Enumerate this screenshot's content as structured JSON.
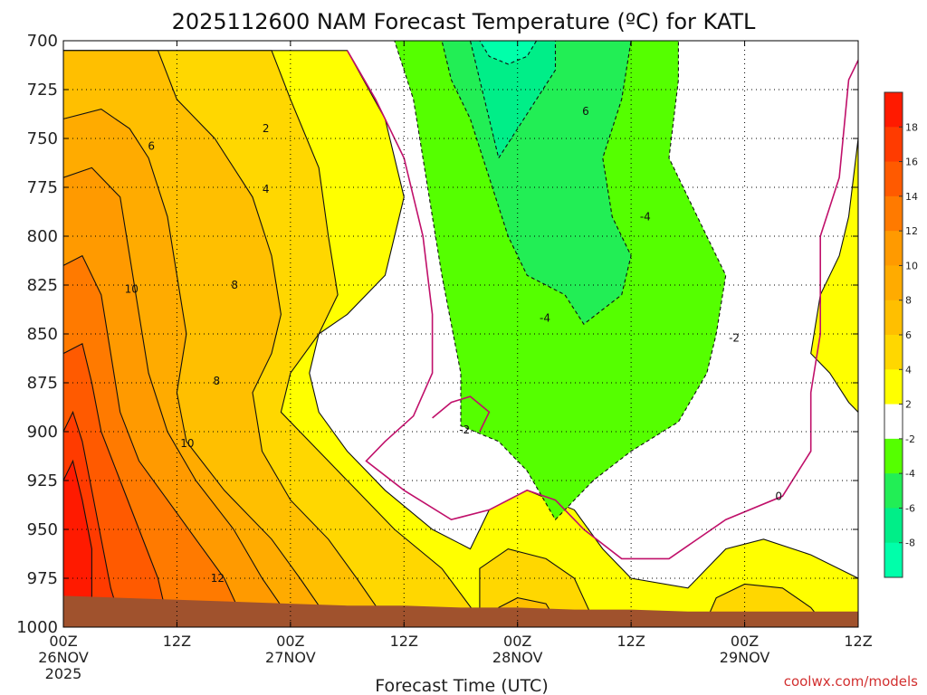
{
  "chart_data": {
    "type": "heatmap",
    "title": "2025112600 NAM Forecast Temperature (ºC) for KATL",
    "xlabel": "Forecast Time (UTC)",
    "ylabel": "",
    "y_ticks": [
      "700",
      "725",
      "750",
      "775",
      "800",
      "825",
      "850",
      "875",
      "900",
      "925",
      "950",
      "975",
      "1000"
    ],
    "y_range_hPa": [
      700,
      1000
    ],
    "x_ticks": [
      {
        "time": "00Z",
        "date": "26NOV",
        "year": "2025"
      },
      {
        "time": "12Z",
        "date": "",
        "year": ""
      },
      {
        "time": "00Z",
        "date": "27NOV",
        "year": ""
      },
      {
        "time": "12Z",
        "date": "",
        "year": ""
      },
      {
        "time": "00Z",
        "date": "28NOV",
        "year": ""
      },
      {
        "time": "12Z",
        "date": "",
        "year": ""
      },
      {
        "time": "00Z",
        "date": "29NOV",
        "year": ""
      },
      {
        "time": "12Z",
        "date": "",
        "year": ""
      }
    ],
    "x_range_hours": [
      0,
      84
    ],
    "grid": true,
    "colorbar": {
      "labels": [
        "18",
        "16",
        "14",
        "12",
        "10",
        "8",
        "6",
        "4",
        "2",
        "-2",
        "-4",
        "-6",
        "-8"
      ],
      "bands": [
        {
          "from": 18,
          "to": 20,
          "color": "#ff1a00"
        },
        {
          "from": 16,
          "to": 18,
          "color": "#ff3b00"
        },
        {
          "from": 14,
          "to": 16,
          "color": "#ff5a00"
        },
        {
          "from": 12,
          "to": 14,
          "color": "#ff7a00"
        },
        {
          "from": 10,
          "to": 12,
          "color": "#ff9a00"
        },
        {
          "from": 8,
          "to": 10,
          "color": "#ffab00"
        },
        {
          "from": 6,
          "to": 8,
          "color": "#ffbf00"
        },
        {
          "from": 4,
          "to": 6,
          "color": "#ffd700"
        },
        {
          "from": 2,
          "to": 4,
          "color": "#ffff00"
        },
        {
          "from": -2,
          "to": 2,
          "color": "#ffffff"
        },
        {
          "from": -4,
          "to": -2,
          "color": "#55ff00"
        },
        {
          "from": -6,
          "to": -4,
          "color": "#22ee55"
        },
        {
          "from": -8,
          "to": -6,
          "color": "#00ee88"
        },
        {
          "from": -10,
          "to": -8,
          "color": "#00ffaa"
        }
      ]
    },
    "contour_labels": [
      {
        "text": "6",
        "hour": 9.3,
        "p": 754
      },
      {
        "text": "2",
        "hour": 21.4,
        "p": 745
      },
      {
        "text": "4",
        "hour": 21.4,
        "p": 776
      },
      {
        "text": "10",
        "hour": 7.2,
        "p": 827
      },
      {
        "text": "8",
        "hour": 18.1,
        "p": 825
      },
      {
        "text": "8",
        "hour": 16.2,
        "p": 874
      },
      {
        "text": "10",
        "hour": 13.1,
        "p": 906
      },
      {
        "text": "12",
        "hour": 16.3,
        "p": 975
      },
      {
        "text": "6",
        "hour": 55.2,
        "p": 736
      },
      {
        "text": "-4",
        "hour": 61.5,
        "p": 790
      },
      {
        "text": "-4",
        "hour": 50.9,
        "p": 842
      },
      {
        "text": "-2",
        "hour": 42.4,
        "p": 899
      },
      {
        "text": "-2",
        "hour": 70.9,
        "p": 852
      },
      {
        "text": "0",
        "hour": 75.6,
        "p": 933
      }
    ],
    "fields": [
      {
        "value_range": [
          2,
          4
        ],
        "color": "#ffff00",
        "outline": [
          [
            0,
            705
          ],
          [
            30,
            705
          ],
          [
            34,
            740
          ],
          [
            36,
            780
          ],
          [
            34,
            820
          ],
          [
            30,
            840
          ],
          [
            27,
            850
          ],
          [
            26,
            870
          ],
          [
            27,
            890
          ],
          [
            30,
            910
          ],
          [
            34,
            930
          ],
          [
            39,
            950
          ],
          [
            43,
            960
          ],
          [
            45,
            940
          ],
          [
            49,
            930
          ],
          [
            54,
            940
          ],
          [
            57,
            960
          ],
          [
            60,
            975
          ],
          [
            66,
            980
          ],
          [
            70,
            960
          ],
          [
            74,
            955
          ],
          [
            79,
            963
          ],
          [
            84,
            975
          ],
          [
            84,
            996
          ],
          [
            0,
            996
          ]
        ]
      },
      {
        "value_range": [
          2,
          4
        ],
        "color": "#ffff00",
        "outline": [
          [
            84,
            750
          ],
          [
            84,
            890
          ],
          [
            83,
            885
          ],
          [
            81,
            870
          ],
          [
            79,
            860
          ],
          [
            80,
            830
          ],
          [
            82,
            810
          ],
          [
            83,
            790
          ]
        ]
      },
      {
        "value_range": [
          4,
          6
        ],
        "color": "#ffd700",
        "outline": [
          [
            0,
            705
          ],
          [
            22,
            705
          ],
          [
            24,
            730
          ],
          [
            27,
            765
          ],
          [
            28,
            800
          ],
          [
            29,
            830
          ],
          [
            27,
            850
          ],
          [
            24,
            870
          ],
          [
            23,
            890
          ],
          [
            27,
            910
          ],
          [
            31,
            930
          ],
          [
            35,
            950
          ],
          [
            40,
            970
          ],
          [
            44,
            996
          ],
          [
            0,
            996
          ]
        ]
      },
      {
        "value_range": [
          4,
          6
        ],
        "color": "#ffd700",
        "outline": [
          [
            44,
            970
          ],
          [
            47,
            960
          ],
          [
            51,
            965
          ],
          [
            54,
            975
          ],
          [
            56,
            996
          ],
          [
            44,
            996
          ]
        ]
      },
      {
        "value_range": [
          4,
          6
        ],
        "color": "#ffd700",
        "outline": [
          [
            68,
            996
          ],
          [
            69,
            985
          ],
          [
            72,
            978
          ],
          [
            76,
            980
          ],
          [
            79,
            990
          ],
          [
            80,
            996
          ]
        ]
      },
      {
        "value_range": [
          6,
          8
        ],
        "color": "#ffbf00",
        "outline": [
          [
            0,
            705
          ],
          [
            10,
            705
          ],
          [
            12,
            730
          ],
          [
            16,
            750
          ],
          [
            20,
            780
          ],
          [
            22,
            810
          ],
          [
            23,
            840
          ],
          [
            22,
            860
          ],
          [
            20,
            880
          ],
          [
            21,
            910
          ],
          [
            24,
            935
          ],
          [
            28,
            955
          ],
          [
            31,
            975
          ],
          [
            34,
            996
          ],
          [
            0,
            996
          ]
        ]
      },
      {
        "value_range": [
          6,
          8
        ],
        "color": "#ffbf00",
        "outline": [
          [
            46,
            990
          ],
          [
            48,
            985
          ],
          [
            51,
            988
          ],
          [
            52,
            996
          ],
          [
            46,
            996
          ]
        ]
      },
      {
        "value_range": [
          8,
          10
        ],
        "color": "#ffab00",
        "outline": [
          [
            0,
            740
          ],
          [
            4,
            735
          ],
          [
            7,
            745
          ],
          [
            9,
            760
          ],
          [
            11,
            790
          ],
          [
            12,
            820
          ],
          [
            13,
            850
          ],
          [
            12,
            880
          ],
          [
            13,
            905
          ],
          [
            17,
            930
          ],
          [
            22,
            955
          ],
          [
            25,
            975
          ],
          [
            28,
            996
          ],
          [
            0,
            996
          ]
        ]
      },
      {
        "value_range": [
          10,
          12
        ],
        "color": "#ff9a00",
        "outline": [
          [
            0,
            770
          ],
          [
            3,
            765
          ],
          [
            6,
            780
          ],
          [
            7,
            810
          ],
          [
            8,
            840
          ],
          [
            9,
            870
          ],
          [
            11,
            900
          ],
          [
            14,
            925
          ],
          [
            18,
            950
          ],
          [
            21,
            975
          ],
          [
            24,
            996
          ],
          [
            0,
            996
          ]
        ]
      },
      {
        "value_range": [
          12,
          14
        ],
        "color": "#ff7a00",
        "outline": [
          [
            0,
            815
          ],
          [
            2,
            810
          ],
          [
            4,
            830
          ],
          [
            5,
            860
          ],
          [
            6,
            890
          ],
          [
            8,
            915
          ],
          [
            11,
            935
          ],
          [
            14,
            955
          ],
          [
            17,
            975
          ],
          [
            19,
            996
          ],
          [
            0,
            996
          ]
        ]
      },
      {
        "value_range": [
          14,
          16
        ],
        "color": "#ff5a00",
        "outline": [
          [
            0,
            860
          ],
          [
            2,
            855
          ],
          [
            3,
            875
          ],
          [
            4,
            900
          ],
          [
            6,
            925
          ],
          [
            8,
            950
          ],
          [
            10,
            975
          ],
          [
            11,
            996
          ],
          [
            0,
            996
          ]
        ]
      },
      {
        "value_range": [
          16,
          18
        ],
        "color": "#ff3b00",
        "outline": [
          [
            0,
            900
          ],
          [
            1,
            890
          ],
          [
            2,
            905
          ],
          [
            3,
            930
          ],
          [
            4,
            955
          ],
          [
            5,
            980
          ],
          [
            6,
            996
          ],
          [
            0,
            996
          ]
        ]
      },
      {
        "value_range": [
          18,
          20
        ],
        "color": "#ff1a00",
        "outline": [
          [
            0,
            925
          ],
          [
            1,
            915
          ],
          [
            2,
            935
          ],
          [
            3,
            960
          ],
          [
            3,
            985
          ],
          [
            0,
            985
          ]
        ]
      },
      {
        "value_range": [
          -4,
          -2
        ],
        "color": "#55ff00",
        "outline": [
          [
            35,
            700
          ],
          [
            65,
            700
          ],
          [
            65,
            720
          ],
          [
            64,
            760
          ],
          [
            67,
            790
          ],
          [
            70,
            820
          ],
          [
            69,
            850
          ],
          [
            68,
            870
          ],
          [
            65,
            895
          ],
          [
            60,
            910
          ],
          [
            56,
            925
          ],
          [
            52,
            945
          ],
          [
            49,
            920
          ],
          [
            46,
            905
          ],
          [
            42,
            897
          ],
          [
            42,
            870
          ],
          [
            41,
            845
          ],
          [
            40,
            820
          ],
          [
            39,
            790
          ],
          [
            38,
            760
          ],
          [
            37,
            730
          ]
        ]
      },
      {
        "value_range": [
          -6,
          -4
        ],
        "color": "#22ee55",
        "outline": [
          [
            40,
            700
          ],
          [
            60,
            700
          ],
          [
            59,
            730
          ],
          [
            57,
            760
          ],
          [
            58,
            790
          ],
          [
            60,
            810
          ],
          [
            59,
            830
          ],
          [
            55,
            845
          ],
          [
            53,
            830
          ],
          [
            49,
            820
          ],
          [
            47,
            800
          ],
          [
            45,
            770
          ],
          [
            43,
            740
          ],
          [
            41,
            720
          ]
        ]
      },
      {
        "value_range": [
          -8,
          -6
        ],
        "color": "#00ee88",
        "outline": [
          [
            43,
            700
          ],
          [
            52,
            700
          ],
          [
            52,
            715
          ],
          [
            50,
            730
          ],
          [
            48,
            745
          ],
          [
            46,
            760
          ],
          [
            45,
            740
          ],
          [
            44,
            720
          ]
        ]
      },
      {
        "value_range": [
          -10,
          -8
        ],
        "color": "#00ffaa",
        "outline": [
          [
            44,
            700
          ],
          [
            50,
            700
          ],
          [
            49,
            708
          ],
          [
            47,
            712
          ],
          [
            45,
            708
          ]
        ]
      }
    ],
    "isotherm_zero_color": "#c0106a",
    "isotherm_zero": [
      [
        [
          30,
          705
        ],
        [
          33,
          730
        ],
        [
          36,
          760
        ],
        [
          38,
          800
        ],
        [
          39,
          840
        ],
        [
          39,
          870
        ],
        [
          37,
          892
        ],
        [
          34,
          905
        ],
        [
          32,
          915
        ],
        [
          36,
          930
        ],
        [
          41,
          945
        ],
        [
          45,
          940
        ],
        [
          49,
          930
        ],
        [
          52,
          935
        ],
        [
          55,
          950
        ],
        [
          59,
          965
        ],
        [
          64,
          965
        ],
        [
          70,
          945
        ],
        [
          76,
          933
        ],
        [
          79,
          910
        ],
        [
          79,
          880
        ],
        [
          80,
          850
        ],
        [
          80,
          800
        ],
        [
          82,
          770
        ],
        [
          83,
          720
        ],
        [
          84,
          710
        ]
      ],
      [
        [
          44,
          900
        ],
        [
          45,
          890
        ],
        [
          43,
          882
        ],
        [
          41,
          885
        ],
        [
          39,
          893
        ]
      ]
    ],
    "ground_color": "#a0522d",
    "surface_pressure": [
      [
        0,
        984
      ],
      [
        6,
        985
      ],
      [
        12,
        986
      ],
      [
        18,
        987
      ],
      [
        24,
        988
      ],
      [
        30,
        989
      ],
      [
        36,
        989
      ],
      [
        42,
        990
      ],
      [
        48,
        990
      ],
      [
        54,
        991
      ],
      [
        60,
        991
      ],
      [
        66,
        992
      ],
      [
        72,
        992
      ],
      [
        78,
        992
      ],
      [
        84,
        992
      ]
    ]
  },
  "footer": {
    "credit": "coolwx.com/models"
  }
}
